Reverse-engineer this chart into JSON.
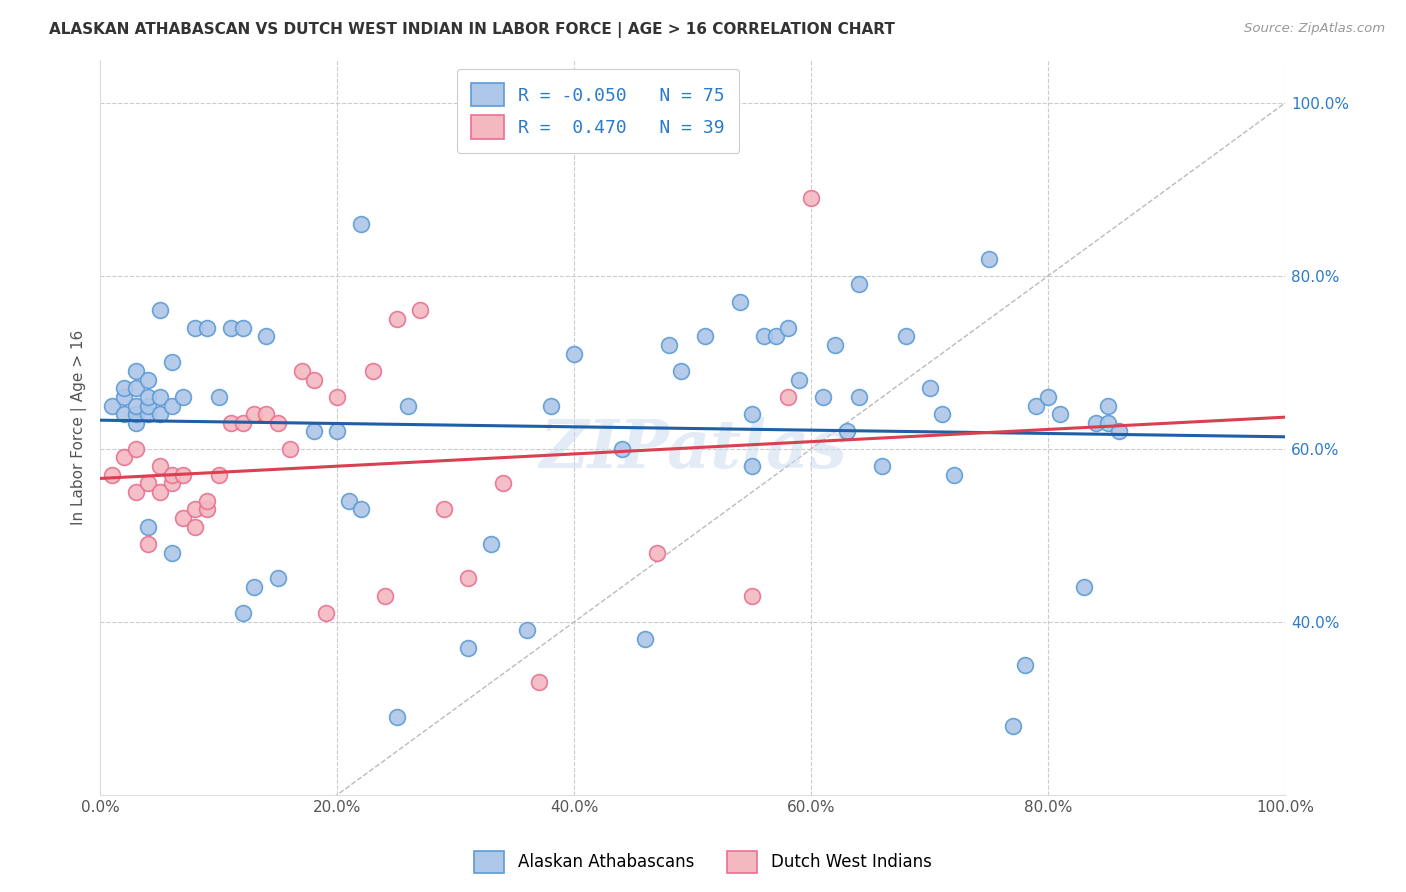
{
  "title": "ALASKAN ATHABASCAN VS DUTCH WEST INDIAN IN LABOR FORCE | AGE > 16 CORRELATION CHART",
  "source": "Source: ZipAtlas.com",
  "ylabel": "In Labor Force | Age > 16",
  "x_min": 0.0,
  "x_max": 1.0,
  "y_min": 0.2,
  "y_max": 1.05,
  "legend_labels": [
    "Alaskan Athabascans",
    "Dutch West Indians"
  ],
  "legend_R": [
    -0.05,
    0.47
  ],
  "legend_N": [
    75,
    39
  ],
  "blue_color": "#aec6e8",
  "pink_color": "#f4b8c1",
  "blue_edge": "#5b9bd5",
  "pink_edge": "#e87090",
  "blue_line_color": "#1f5fa6",
  "pink_line_color": "#d94050",
  "diagonal_color": "#bbbbbb",
  "watermark": "ZIPatlas",
  "blue_scatter_x": [
    0.01,
    0.02,
    0.02,
    0.02,
    0.03,
    0.03,
    0.03,
    0.03,
    0.03,
    0.04,
    0.04,
    0.04,
    0.04,
    0.04,
    0.05,
    0.05,
    0.05,
    0.06,
    0.06,
    0.06,
    0.07,
    0.08,
    0.09,
    0.1,
    0.11,
    0.12,
    0.12,
    0.13,
    0.14,
    0.15,
    0.18,
    0.2,
    0.21,
    0.22,
    0.22,
    0.25,
    0.26,
    0.31,
    0.33,
    0.36,
    0.38,
    0.4,
    0.44,
    0.46,
    0.48,
    0.49,
    0.51,
    0.54,
    0.55,
    0.55,
    0.56,
    0.57,
    0.58,
    0.59,
    0.61,
    0.62,
    0.63,
    0.64,
    0.64,
    0.66,
    0.68,
    0.7,
    0.71,
    0.72,
    0.75,
    0.77,
    0.78,
    0.79,
    0.8,
    0.81,
    0.83,
    0.84,
    0.85,
    0.85,
    0.86
  ],
  "blue_scatter_y": [
    0.65,
    0.64,
    0.66,
    0.67,
    0.63,
    0.64,
    0.65,
    0.67,
    0.69,
    0.51,
    0.64,
    0.65,
    0.66,
    0.68,
    0.64,
    0.66,
    0.76,
    0.48,
    0.65,
    0.7,
    0.66,
    0.74,
    0.74,
    0.66,
    0.74,
    0.74,
    0.41,
    0.44,
    0.73,
    0.45,
    0.62,
    0.62,
    0.54,
    0.53,
    0.86,
    0.29,
    0.65,
    0.37,
    0.49,
    0.39,
    0.65,
    0.71,
    0.6,
    0.38,
    0.72,
    0.69,
    0.73,
    0.77,
    0.58,
    0.64,
    0.73,
    0.73,
    0.74,
    0.68,
    0.66,
    0.72,
    0.62,
    0.79,
    0.66,
    0.58,
    0.73,
    0.67,
    0.64,
    0.57,
    0.82,
    0.28,
    0.35,
    0.65,
    0.66,
    0.64,
    0.44,
    0.63,
    0.63,
    0.65,
    0.62
  ],
  "pink_scatter_x": [
    0.01,
    0.02,
    0.03,
    0.03,
    0.04,
    0.04,
    0.05,
    0.05,
    0.06,
    0.06,
    0.07,
    0.07,
    0.08,
    0.08,
    0.09,
    0.09,
    0.1,
    0.11,
    0.12,
    0.13,
    0.14,
    0.15,
    0.16,
    0.17,
    0.18,
    0.19,
    0.2,
    0.23,
    0.24,
    0.25,
    0.27,
    0.29,
    0.31,
    0.34,
    0.37,
    0.47,
    0.55,
    0.58,
    0.6
  ],
  "pink_scatter_y": [
    0.57,
    0.59,
    0.55,
    0.6,
    0.49,
    0.56,
    0.55,
    0.58,
    0.56,
    0.57,
    0.52,
    0.57,
    0.53,
    0.51,
    0.53,
    0.54,
    0.57,
    0.63,
    0.63,
    0.64,
    0.64,
    0.63,
    0.6,
    0.69,
    0.68,
    0.41,
    0.66,
    0.69,
    0.43,
    0.75,
    0.76,
    0.53,
    0.45,
    0.56,
    0.33,
    0.48,
    0.43,
    0.66,
    0.89
  ],
  "figsize": [
    14.06,
    8.92
  ],
  "dpi": 100
}
